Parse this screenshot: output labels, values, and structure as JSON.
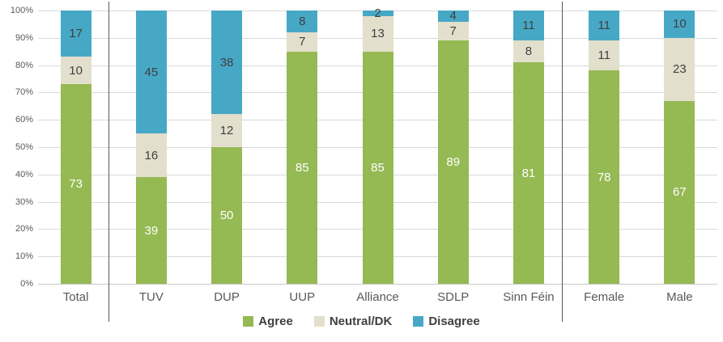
{
  "chart_data": {
    "type": "bar",
    "variant": "100-percent-stacked-column",
    "title": "",
    "categories": [
      "Total",
      "TUV",
      "DUP",
      "UUP",
      "Alliance",
      "SDLP",
      "Sinn Féin",
      "Female",
      "Male"
    ],
    "series": [
      {
        "name": "Agree",
        "color": "#95b953",
        "label_color": "#ffffff",
        "values": [
          73,
          39,
          50,
          85,
          85,
          89,
          81,
          78,
          67
        ]
      },
      {
        "name": "Neutral/DK",
        "color": "#e3dfcd",
        "label_color": "#404040",
        "values": [
          10,
          16,
          12,
          7,
          13,
          7,
          8,
          11,
          23
        ]
      },
      {
        "name": "Disagree",
        "color": "#47a8c6",
        "label_color": "#404040",
        "values": [
          17,
          45,
          38,
          8,
          2,
          4,
          11,
          11,
          10
        ]
      }
    ],
    "y_axis": {
      "ticks": [
        "0%",
        "10%",
        "20%",
        "30%",
        "40%",
        "50%",
        "60%",
        "70%",
        "80%",
        "90%",
        "100%"
      ],
      "min": 0,
      "max": 100
    },
    "grid": true,
    "legend": {
      "position": "bottom",
      "entries": [
        "Agree",
        "Neutral/DK",
        "Disagree"
      ]
    },
    "group_separators_after_categories": [
      "Total",
      "Sinn Féin"
    ]
  },
  "style_colors": {
    "background": "#ffffff",
    "gridline": "#d9d9d9",
    "baseline": "#c9c9c9",
    "divider": "#595959",
    "axis_text": "#595959",
    "category_text": "#595959",
    "legend_text": "#404040"
  }
}
